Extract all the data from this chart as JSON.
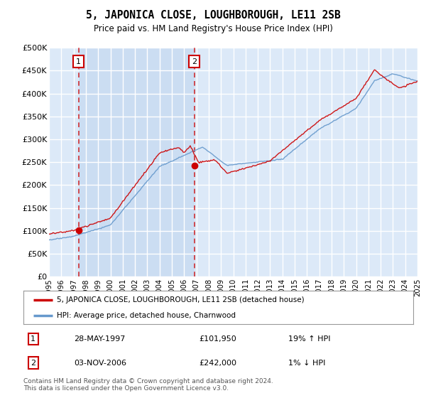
{
  "title": "5, JAPONICA CLOSE, LOUGHBOROUGH, LE11 2SB",
  "subtitle": "Price paid vs. HM Land Registry's House Price Index (HPI)",
  "ylim": [
    0,
    500000
  ],
  "yticks": [
    0,
    50000,
    100000,
    150000,
    200000,
    250000,
    300000,
    350000,
    400000,
    450000,
    500000
  ],
  "ytick_labels": [
    "£0",
    "£50K",
    "£100K",
    "£150K",
    "£200K",
    "£250K",
    "£300K",
    "£350K",
    "£400K",
    "£450K",
    "£500K"
  ],
  "bg_color": "#dce9f8",
  "grid_color": "#ffffff",
  "shade_color": "#c5d9f0",
  "sale1_date": 1997.41,
  "sale1_price": 101950,
  "sale1_label": "1",
  "sale2_date": 2006.84,
  "sale2_price": 242000,
  "sale2_label": "2",
  "legend_line1": "5, JAPONICA CLOSE, LOUGHBOROUGH, LE11 2SB (detached house)",
  "legend_line2": "HPI: Average price, detached house, Charnwood",
  "table_row1": [
    "1",
    "28-MAY-1997",
    "£101,950",
    "19% ↑ HPI"
  ],
  "table_row2": [
    "2",
    "03-NOV-2006",
    "£242,000",
    "1% ↓ HPI"
  ],
  "footer": "Contains HM Land Registry data © Crown copyright and database right 2024.\nThis data is licensed under the Open Government Licence v3.0.",
  "line_color_red": "#cc0000",
  "line_color_blue": "#6699cc",
  "x_start": 1995,
  "x_end": 2025,
  "xticks": [
    1995,
    1996,
    1997,
    1998,
    1999,
    2000,
    2001,
    2002,
    2003,
    2004,
    2005,
    2006,
    2007,
    2008,
    2009,
    2010,
    2011,
    2012,
    2013,
    2014,
    2015,
    2016,
    2017,
    2018,
    2019,
    2020,
    2021,
    2022,
    2023,
    2024,
    2025
  ]
}
